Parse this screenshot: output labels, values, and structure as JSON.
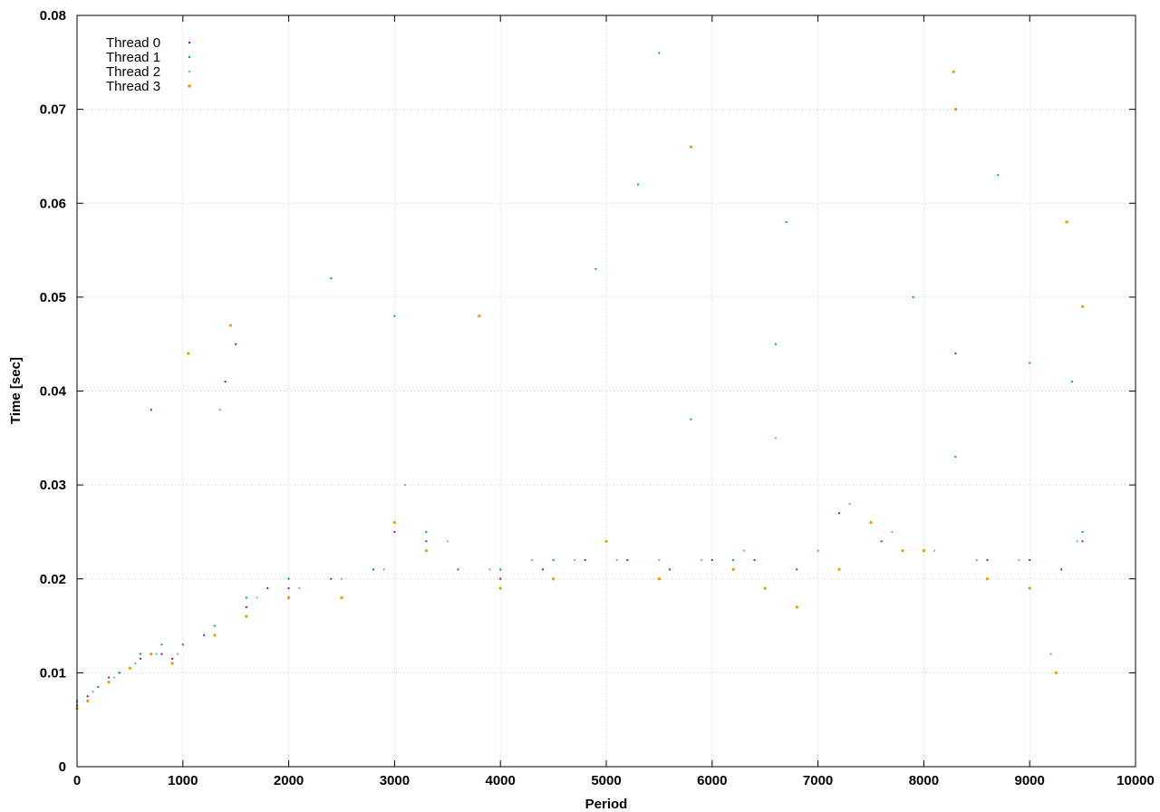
{
  "chart_data": {
    "type": "scatter",
    "title": "",
    "xlabel": "Period",
    "ylabel": "Time [sec]",
    "xlim": [
      0,
      10000
    ],
    "ylim": [
      0,
      0.08
    ],
    "x_ticks": [
      "0",
      "1000",
      "2000",
      "3000",
      "4000",
      "5000",
      "6000",
      "7000",
      "8000",
      "9000",
      "10000"
    ],
    "y_ticks": [
      "0",
      "0.01",
      "0.02",
      "0.03",
      "0.04",
      "0.05",
      "0.06",
      "0.07",
      "0.08"
    ],
    "grid": true,
    "legend_position": "top-left",
    "series": [
      {
        "name": "Thread 0",
        "color": "#9400d3",
        "points": [
          [
            0,
            0.0065
          ],
          [
            100,
            0.0075
          ],
          [
            200,
            0.0085
          ],
          [
            300,
            0.0095
          ],
          [
            400,
            0.01
          ],
          [
            500,
            0.0105
          ],
          [
            600,
            0.0115
          ],
          [
            700,
            0.038
          ],
          [
            800,
            0.012
          ],
          [
            900,
            0.0115
          ],
          [
            1000,
            0.013
          ],
          [
            1200,
            0.014
          ],
          [
            1400,
            0.041
          ],
          [
            1500,
            0.045
          ],
          [
            1600,
            0.017
          ],
          [
            1800,
            0.019
          ],
          [
            2000,
            0.019
          ],
          [
            2400,
            0.02
          ],
          [
            2800,
            0.021
          ],
          [
            3000,
            0.025
          ],
          [
            3300,
            0.024
          ],
          [
            3600,
            0.021
          ],
          [
            4000,
            0.02
          ],
          [
            4400,
            0.021
          ],
          [
            4800,
            0.022
          ],
          [
            5200,
            0.022
          ],
          [
            5600,
            0.021
          ],
          [
            6000,
            0.022
          ],
          [
            6400,
            0.022
          ],
          [
            6800,
            0.021
          ],
          [
            7200,
            0.027
          ],
          [
            7600,
            0.024
          ],
          [
            8000,
            0.023
          ],
          [
            8300,
            0.044
          ],
          [
            8600,
            0.022
          ],
          [
            9000,
            0.022
          ],
          [
            9300,
            0.021
          ],
          [
            9500,
            0.024
          ]
        ]
      },
      {
        "name": "Thread 1",
        "color": "#009e73",
        "points": [
          [
            0,
            0.007
          ],
          [
            200,
            0.0085
          ],
          [
            400,
            0.01
          ],
          [
            600,
            0.012
          ],
          [
            800,
            0.013
          ],
          [
            1000,
            0.013
          ],
          [
            1300,
            0.015
          ],
          [
            1600,
            0.018
          ],
          [
            2000,
            0.02
          ],
          [
            2400,
            0.052
          ],
          [
            2800,
            0.021
          ],
          [
            3000,
            0.048
          ],
          [
            3300,
            0.025
          ],
          [
            3600,
            0.021
          ],
          [
            4000,
            0.021
          ],
          [
            4500,
            0.022
          ],
          [
            4900,
            0.053
          ],
          [
            5300,
            0.062
          ],
          [
            5500,
            0.076
          ],
          [
            5800,
            0.037
          ],
          [
            6200,
            0.022
          ],
          [
            6600,
            0.045
          ],
          [
            6700,
            0.058
          ],
          [
            7000,
            0.023
          ],
          [
            7500,
            0.026
          ],
          [
            7900,
            0.05
          ],
          [
            8300,
            0.033
          ],
          [
            8700,
            0.063
          ],
          [
            9000,
            0.043
          ],
          [
            9400,
            0.041
          ],
          [
            9500,
            0.025
          ]
        ]
      },
      {
        "name": "Thread 2",
        "color": "#56b4e9",
        "points": [
          [
            0,
            0.0068
          ],
          [
            150,
            0.008
          ],
          [
            350,
            0.0095
          ],
          [
            550,
            0.011
          ],
          [
            750,
            0.012
          ],
          [
            950,
            0.012
          ],
          [
            1350,
            0.038
          ],
          [
            1700,
            0.018
          ],
          [
            2100,
            0.019
          ],
          [
            2500,
            0.02
          ],
          [
            2900,
            0.021
          ],
          [
            3100,
            0.03
          ],
          [
            3500,
            0.024
          ],
          [
            3900,
            0.021
          ],
          [
            4300,
            0.022
          ],
          [
            4700,
            0.022
          ],
          [
            5100,
            0.022
          ],
          [
            5500,
            0.022
          ],
          [
            5900,
            0.022
          ],
          [
            6300,
            0.023
          ],
          [
            6600,
            0.035
          ],
          [
            7000,
            0.023
          ],
          [
            7300,
            0.028
          ],
          [
            7700,
            0.025
          ],
          [
            8100,
            0.023
          ],
          [
            8500,
            0.022
          ],
          [
            8900,
            0.022
          ],
          [
            9200,
            0.012
          ],
          [
            9450,
            0.024
          ]
        ]
      },
      {
        "name": "Thread 3",
        "color": "#e69f00",
        "points": [
          [
            0,
            0.0062
          ],
          [
            100,
            0.007
          ],
          [
            300,
            0.009
          ],
          [
            500,
            0.0105
          ],
          [
            700,
            0.012
          ],
          [
            900,
            0.011
          ],
          [
            1050,
            0.044
          ],
          [
            1300,
            0.014
          ],
          [
            1450,
            0.047
          ],
          [
            1600,
            0.016
          ],
          [
            2000,
            0.018
          ],
          [
            2500,
            0.018
          ],
          [
            3000,
            0.026
          ],
          [
            3300,
            0.023
          ],
          [
            3800,
            0.048
          ],
          [
            4000,
            0.019
          ],
          [
            4500,
            0.02
          ],
          [
            5000,
            0.024
          ],
          [
            5500,
            0.02
          ],
          [
            5800,
            0.066
          ],
          [
            6200,
            0.021
          ],
          [
            6500,
            0.019
          ],
          [
            6800,
            0.017
          ],
          [
            7200,
            0.021
          ],
          [
            7500,
            0.026
          ],
          [
            7800,
            0.023
          ],
          [
            8000,
            0.023
          ],
          [
            8280,
            0.074
          ],
          [
            8300,
            0.07
          ],
          [
            8600,
            0.02
          ],
          [
            9000,
            0.019
          ],
          [
            9250,
            0.01
          ],
          [
            9350,
            0.058
          ],
          [
            9500,
            0.049
          ]
        ]
      }
    ]
  }
}
